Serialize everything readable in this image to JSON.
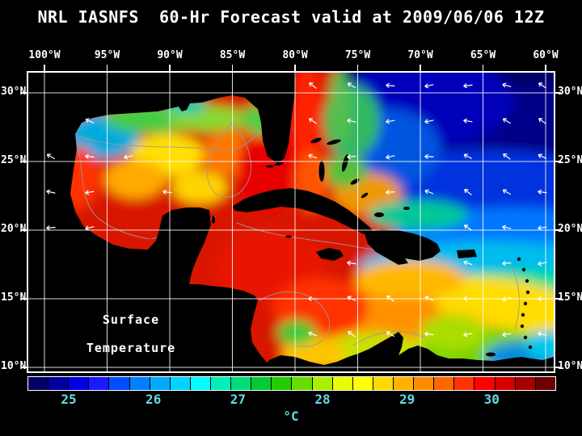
{
  "title": "NRL IASNFS  60-Hr Forecast valid at 2009/06/06 12Z",
  "map": {
    "annotation_line1": "Surface",
    "annotation_line2": "Temperature"
  },
  "axes": {
    "lon_labels": [
      "100°W",
      "95°W",
      "90°W",
      "85°W",
      "80°W",
      "75°W",
      "70°W",
      "65°W",
      "60°W"
    ],
    "lat_labels": [
      "30°N",
      "25°N",
      "20°N",
      "15°N",
      "10°N"
    ]
  },
  "colorbar": {
    "unit": "°C",
    "ticks": [
      "25",
      "26",
      "27",
      "28",
      "29",
      "30"
    ],
    "tick_positions_pct": [
      7.7,
      23.8,
      39.9,
      56.0,
      72.1,
      88.2
    ],
    "label_color": "#66d9e6",
    "colors": [
      "#000066",
      "#0000a0",
      "#0000e0",
      "#1a1aff",
      "#004dff",
      "#0080ff",
      "#00aaff",
      "#00d4ff",
      "#00ffff",
      "#00eebb",
      "#00dd77",
      "#00cc33",
      "#22cc00",
      "#66dd00",
      "#aaee00",
      "#e6ff00",
      "#ffff00",
      "#ffd900",
      "#ffb300",
      "#ff8c00",
      "#ff6600",
      "#ff3300",
      "#ff0000",
      "#d40000",
      "#a30000",
      "#6e0000"
    ]
  },
  "chart_data": {
    "type": "heatmap",
    "title": "NRL IASNFS 60-Hr Forecast valid at 2009/06/06 12Z",
    "variable": "Surface Temperature",
    "units": "°C",
    "colorbar_ticks": [
      25,
      26,
      27,
      28,
      29,
      30
    ],
    "lon_axis_deg_west": [
      100,
      95,
      90,
      85,
      80,
      75,
      70,
      65,
      60
    ],
    "lat_axis_deg_north": [
      30,
      25,
      20,
      15,
      10
    ],
    "grid_interval_deg": 5,
    "grid": "on",
    "legend_position": "bottom",
    "overlay": "wind vectors (white arrows), bathymetry contours (gray)"
  }
}
